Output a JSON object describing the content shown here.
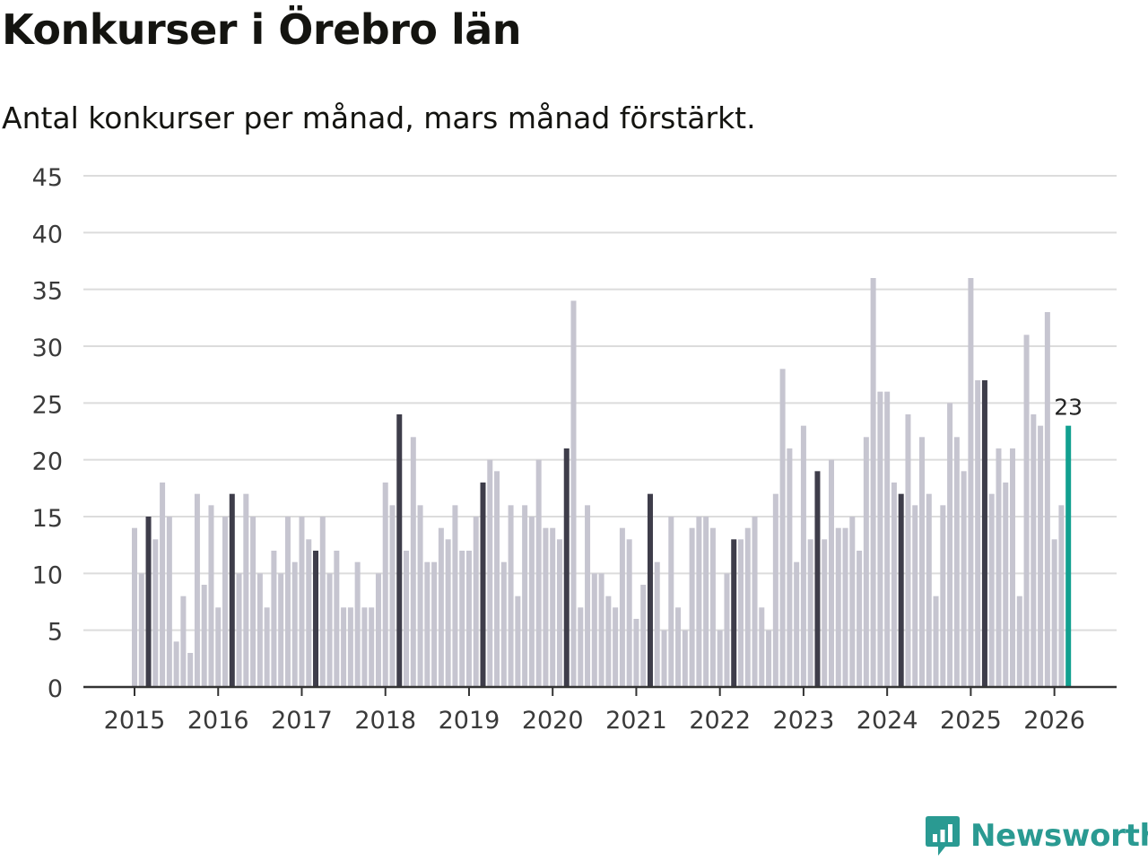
{
  "title": "Konkurser i Örebro län",
  "subtitle": "Antal konkurser per månad, mars månad förstärkt.",
  "brand": {
    "name": "Newsworthy",
    "color": "#2a9a92",
    "icon": "bar-chart-bubble-icon"
  },
  "colors": {
    "normal": "#c6c5d0",
    "march": "#3e3d4a",
    "latest": "#12a090",
    "grid": "#dcdcdc",
    "axis": "#333333"
  },
  "chart_data": {
    "type": "bar",
    "title": "Konkurser i Örebro län",
    "xlabel": "",
    "ylabel": "",
    "ylim": [
      0,
      45
    ],
    "yticks": [
      0,
      5,
      10,
      15,
      20,
      25,
      30,
      35,
      40,
      45
    ],
    "xticks": [
      "2015",
      "2016",
      "2017",
      "2018",
      "2019",
      "2020",
      "2021",
      "2022",
      "2023",
      "2024",
      "2025",
      "2026"
    ],
    "start": "2015-01",
    "highlight": "March",
    "latest_label": "23",
    "values": [
      14,
      10,
      15,
      13,
      18,
      15,
      4,
      8,
      3,
      17,
      9,
      16,
      7,
      15,
      17,
      10,
      17,
      15,
      10,
      7,
      12,
      10,
      15,
      11,
      15,
      13,
      12,
      15,
      10,
      12,
      7,
      7,
      11,
      7,
      7,
      10,
      18,
      16,
      24,
      12,
      22,
      16,
      11,
      11,
      14,
      13,
      16,
      12,
      12,
      15,
      18,
      20,
      19,
      11,
      16,
      8,
      16,
      15,
      20,
      14,
      14,
      13,
      21,
      34,
      7,
      16,
      10,
      10,
      8,
      7,
      14,
      13,
      6,
      9,
      17,
      11,
      5,
      15,
      7,
      5,
      14,
      15,
      15,
      14,
      5,
      10,
      13,
      13,
      14,
      15,
      7,
      5,
      17,
      28,
      21,
      11,
      23,
      13,
      19,
      13,
      20,
      14,
      14,
      15,
      12,
      22,
      36,
      26,
      26,
      18,
      17,
      24,
      16,
      22,
      17,
      8,
      16,
      25,
      22,
      19,
      36,
      27,
      27,
      17,
      21,
      18,
      21,
      8,
      31,
      24,
      23,
      33,
      13,
      16,
      23
    ]
  }
}
